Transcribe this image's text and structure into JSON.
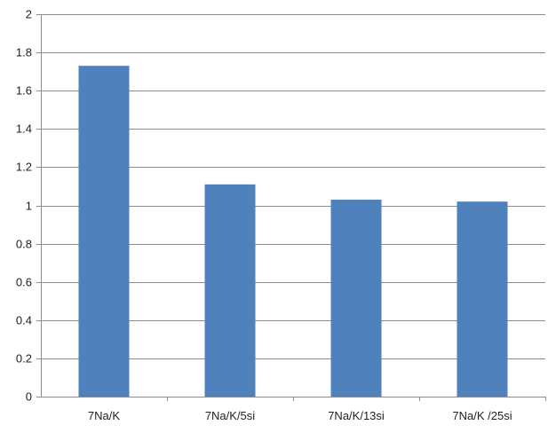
{
  "chart_data": {
    "type": "bar",
    "categories": [
      "7Na/K",
      "7Na/K/5si",
      "7Na/K/13si",
      "7Na/K /25si"
    ],
    "values": [
      1.73,
      1.11,
      1.03,
      1.02
    ],
    "title": "",
    "xlabel": "",
    "ylabel": "",
    "ylim": [
      0,
      2
    ],
    "ytick_step": 0.2,
    "yticks": [
      "0",
      "0.2",
      "0.4",
      "0.6",
      "0.8",
      "1",
      "1.2",
      "1.4",
      "1.6",
      "1.8",
      "2"
    ],
    "grid": true,
    "legend": "none",
    "bar_color": "#4f81bd"
  }
}
